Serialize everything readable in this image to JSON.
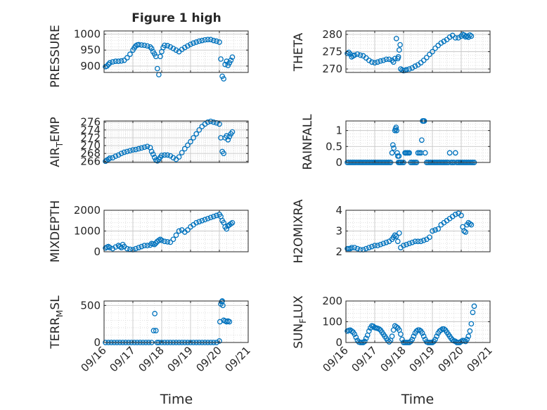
{
  "figure_title": "Figure 1 high",
  "series_color": "#0072BD",
  "x_label": "Time",
  "x_ticks": [
    "09/16",
    "09/17",
    "09/18",
    "09/19",
    "09/20",
    "09/21"
  ],
  "chart_data": [
    {
      "type": "scatter",
      "ylabel": "PRESSURE",
      "xlim": [
        0,
        5
      ],
      "ylim": [
        880,
        1010
      ],
      "yticks": [
        900,
        950,
        1000
      ],
      "ytick_labels": [
        "900",
        "950",
        "1000"
      ],
      "grid": true,
      "x": [
        0.05,
        0.1,
        0.15,
        0.2,
        0.3,
        0.4,
        0.5,
        0.6,
        0.7,
        0.8,
        0.9,
        1.0,
        1.05,
        1.1,
        1.15,
        1.2,
        1.3,
        1.4,
        1.5,
        1.6,
        1.65,
        1.7,
        1.75,
        1.8,
        1.85,
        1.9,
        1.95,
        2.0,
        2.05,
        2.1,
        2.2,
        2.3,
        2.4,
        2.5,
        2.6,
        2.7,
        2.8,
        2.9,
        3.0,
        3.1,
        3.2,
        3.3,
        3.4,
        3.5,
        3.6,
        3.7,
        3.8,
        3.9,
        4.0,
        4.05,
        4.1,
        4.15,
        4.2,
        4.25,
        4.3,
        4.35,
        4.4,
        4.45
      ],
      "y": [
        898,
        900,
        905,
        910,
        913,
        915,
        915,
        916,
        918,
        926,
        937,
        950,
        957,
        963,
        966,
        967,
        966,
        965,
        963,
        960,
        955,
        945,
        938,
        930,
        892,
        873,
        930,
        945,
        958,
        965,
        964,
        960,
        955,
        950,
        945,
        952,
        958,
        963,
        968,
        972,
        975,
        978,
        980,
        982,
        983,
        983,
        980,
        978,
        975,
        922,
        868,
        860,
        905,
        915,
        902,
        910,
        918,
        928
      ]
    },
    {
      "type": "scatter",
      "ylabel": "THETA",
      "xlim": [
        0,
        5
      ],
      "ylim": [
        269,
        281
      ],
      "yticks": [
        270,
        275,
        280
      ],
      "ytick_labels": [
        "270",
        "275",
        "280"
      ],
      "grid": true,
      "x": [
        0.05,
        0.1,
        0.15,
        0.2,
        0.25,
        0.3,
        0.4,
        0.5,
        0.6,
        0.7,
        0.8,
        0.9,
        1.0,
        1.1,
        1.2,
        1.3,
        1.4,
        1.5,
        1.6,
        1.65,
        1.7,
        1.75,
        1.8,
        1.82,
        1.85,
        1.88,
        1.9,
        1.95,
        2.0,
        2.05,
        2.1,
        2.2,
        2.3,
        2.4,
        2.5,
        2.6,
        2.7,
        2.8,
        2.9,
        3.0,
        3.1,
        3.2,
        3.3,
        3.4,
        3.5,
        3.6,
        3.7,
        3.8,
        3.9,
        4.0,
        4.05,
        4.1,
        4.15,
        4.2,
        4.25,
        4.3,
        4.35
      ],
      "y": [
        274.5,
        274.8,
        274.3,
        273.5,
        273.8,
        274.0,
        274.3,
        274.0,
        273.8,
        273.2,
        272.5,
        272.0,
        271.8,
        272.0,
        272.3,
        272.5,
        272.8,
        272.8,
        272.5,
        272.0,
        273.0,
        278.8,
        273.0,
        273.5,
        275.5,
        277.0,
        270.0,
        269.7,
        269.5,
        269.6,
        269.8,
        270.0,
        270.3,
        270.8,
        271.2,
        271.8,
        272.5,
        273.3,
        274.2,
        275.0,
        276.0,
        276.8,
        277.5,
        278.0,
        278.5,
        279.2,
        279.7,
        279.0,
        279.0,
        279.5,
        280.0,
        279.8,
        279.3,
        279.5,
        279.2,
        279.8,
        279.5
      ]
    },
    {
      "type": "scatter",
      "ylabel": "AIR_TEMP",
      "xlim": [
        0,
        5
      ],
      "ylim": [
        265.7,
        276.3
      ],
      "yticks": [
        266,
        268,
        270,
        272,
        274,
        276
      ],
      "ytick_labels": [
        "266",
        "268",
        "270",
        "272",
        "274",
        "276"
      ],
      "grid": true,
      "x": [
        0.05,
        0.1,
        0.15,
        0.2,
        0.3,
        0.4,
        0.5,
        0.6,
        0.7,
        0.8,
        0.9,
        1.0,
        1.1,
        1.2,
        1.3,
        1.4,
        1.5,
        1.6,
        1.65,
        1.7,
        1.75,
        1.8,
        1.85,
        1.9,
        1.95,
        2.0,
        2.1,
        2.2,
        2.3,
        2.4,
        2.5,
        2.6,
        2.7,
        2.8,
        2.9,
        3.0,
        3.1,
        3.2,
        3.3,
        3.4,
        3.5,
        3.6,
        3.7,
        3.8,
        3.9,
        4.0,
        4.05,
        4.1,
        4.15,
        4.2,
        4.25,
        4.3,
        4.35,
        4.4,
        4.45
      ],
      "y": [
        266.0,
        266.3,
        266.5,
        266.8,
        266.9,
        267.3,
        267.6,
        268.0,
        268.3,
        268.5,
        268.7,
        268.9,
        269.0,
        269.2,
        269.4,
        269.6,
        269.8,
        269.5,
        268.5,
        267.8,
        267.0,
        266.3,
        266.1,
        266.5,
        267.0,
        267.5,
        267.6,
        267.6,
        267.4,
        266.9,
        266.5,
        267.1,
        268.2,
        269.2,
        270.1,
        271.0,
        272.0,
        273.0,
        274.0,
        274.9,
        275.5,
        276.0,
        276.2,
        276.0,
        275.8,
        275.5,
        272.0,
        268.5,
        268.0,
        272.0,
        272.5,
        271.5,
        272.3,
        273.0,
        273.5
      ]
    },
    {
      "type": "scatter",
      "ylabel": "RAINFALL",
      "xlim": [
        0,
        5
      ],
      "ylim": [
        0,
        1.3
      ],
      "yticks": [
        0,
        0.5,
        1
      ],
      "ytick_labels": [
        "0",
        "0.5",
        "1"
      ],
      "grid": true,
      "x": [
        0.05,
        0.1,
        0.15,
        0.2,
        0.25,
        0.3,
        0.35,
        0.4,
        0.45,
        0.5,
        0.55,
        0.6,
        0.65,
        0.7,
        0.75,
        0.8,
        0.85,
        0.9,
        0.95,
        1.0,
        1.05,
        1.1,
        1.15,
        1.2,
        1.25,
        1.3,
        1.35,
        1.4,
        1.45,
        1.5,
        1.55,
        1.6,
        1.63,
        1.66,
        1.7,
        1.72,
        1.74,
        1.76,
        1.78,
        1.8,
        1.82,
        1.84,
        1.86,
        1.88,
        1.9,
        1.95,
        2.0,
        2.05,
        2.08,
        2.12,
        2.16,
        2.2,
        2.25,
        2.3,
        2.35,
        2.4,
        2.45,
        2.5,
        2.55,
        2.6,
        2.63,
        2.66,
        2.69,
        2.72,
        2.75,
        2.8,
        2.85,
        2.9,
        2.95,
        3.0,
        3.05,
        3.1,
        3.15,
        3.2,
        3.25,
        3.3,
        3.35,
        3.4,
        3.45,
        3.5,
        3.55,
        3.6,
        3.65,
        3.7,
        3.75,
        3.8,
        3.85,
        3.9,
        3.95,
        4.0,
        4.05,
        4.1,
        4.15,
        4.2,
        4.25,
        4.3,
        4.35,
        4.4,
        4.45
      ],
      "y": [
        0,
        0,
        0,
        0,
        0,
        0,
        0,
        0,
        0,
        0,
        0,
        0,
        0,
        0,
        0,
        0,
        0,
        0,
        0,
        0,
        0,
        0,
        0,
        0,
        0,
        0,
        0,
        0,
        0,
        0,
        0,
        0.3,
        0.55,
        0.45,
        1.0,
        1.05,
        1.1,
        1.0,
        0.3,
        0.2,
        0,
        0.2,
        0,
        0,
        0,
        0,
        0,
        0.3,
        0.3,
        0.3,
        0.3,
        0.3,
        0,
        0,
        0,
        0,
        0,
        0.3,
        0.3,
        0.3,
        0.7,
        1.3,
        1.3,
        1.3,
        0.3,
        0,
        0,
        0,
        0,
        0,
        0,
        0,
        0,
        0,
        0,
        0,
        0,
        0,
        0,
        0,
        0,
        0.3,
        0,
        0,
        0,
        0.3,
        0,
        0,
        0,
        0,
        0,
        0,
        0,
        0,
        0,
        0,
        0,
        0,
        0
      ]
    },
    {
      "type": "scatter",
      "ylabel": "MIXDEPTH",
      "xlim": [
        0,
        5
      ],
      "ylim": [
        0,
        2000
      ],
      "yticks": [
        0,
        1000,
        2000
      ],
      "ytick_labels": [
        "0",
        "1000",
        "2000"
      ],
      "grid": true,
      "x": [
        0.05,
        0.1,
        0.15,
        0.2,
        0.3,
        0.4,
        0.5,
        0.55,
        0.6,
        0.65,
        0.7,
        0.8,
        0.9,
        1.0,
        1.1,
        1.2,
        1.3,
        1.4,
        1.5,
        1.6,
        1.65,
        1.7,
        1.75,
        1.8,
        1.85,
        1.9,
        1.95,
        2.0,
        2.1,
        2.2,
        2.3,
        2.4,
        2.5,
        2.6,
        2.7,
        2.8,
        2.9,
        3.0,
        3.1,
        3.2,
        3.3,
        3.4,
        3.5,
        3.6,
        3.7,
        3.8,
        3.9,
        4.0,
        4.05,
        4.1,
        4.15,
        4.2,
        4.25,
        4.3,
        4.35,
        4.4,
        4.45
      ],
      "y": [
        180,
        220,
        250,
        200,
        150,
        230,
        300,
        250,
        200,
        350,
        250,
        150,
        120,
        100,
        150,
        200,
        250,
        300,
        300,
        320,
        400,
        380,
        350,
        420,
        500,
        550,
        600,
        550,
        500,
        480,
        460,
        600,
        800,
        1000,
        1050,
        950,
        1050,
        1200,
        1300,
        1400,
        1450,
        1500,
        1550,
        1600,
        1650,
        1700,
        1750,
        1800,
        1700,
        1500,
        1400,
        1200,
        1100,
        1250,
        1300,
        1350,
        1400
      ]
    },
    {
      "type": "scatter",
      "ylabel": "H2OMIXRA",
      "xlim": [
        0,
        5
      ],
      "ylim": [
        2,
        4
      ],
      "yticks": [
        2,
        3,
        4
      ],
      "ytick_labels": [
        "2",
        "3",
        "4"
      ],
      "grid": true,
      "x": [
        0.05,
        0.1,
        0.15,
        0.2,
        0.3,
        0.4,
        0.5,
        0.6,
        0.7,
        0.8,
        0.9,
        1.0,
        1.1,
        1.2,
        1.3,
        1.4,
        1.5,
        1.6,
        1.65,
        1.7,
        1.75,
        1.8,
        1.85,
        1.9,
        2.0,
        2.1,
        2.2,
        2.3,
        2.4,
        2.5,
        2.6,
        2.7,
        2.8,
        2.9,
        3.0,
        3.1,
        3.2,
        3.3,
        3.4,
        3.5,
        3.6,
        3.7,
        3.8,
        3.9,
        4.0,
        4.05,
        4.1,
        4.15,
        4.2,
        4.25,
        4.3,
        4.35
      ],
      "y": [
        2.15,
        2.15,
        2.15,
        2.2,
        2.2,
        2.15,
        2.1,
        2.1,
        2.15,
        2.2,
        2.25,
        2.3,
        2.3,
        2.35,
        2.4,
        2.45,
        2.5,
        2.6,
        2.7,
        2.8,
        2.75,
        2.5,
        2.9,
        2.2,
        2.3,
        2.35,
        2.4,
        2.45,
        2.5,
        2.5,
        2.5,
        2.55,
        2.6,
        2.7,
        3.0,
        3.05,
        3.1,
        3.3,
        3.4,
        3.5,
        3.6,
        3.7,
        3.8,
        3.85,
        3.75,
        3.2,
        3.0,
        2.95,
        3.3,
        3.4,
        3.35,
        3.3
      ]
    },
    {
      "type": "scatter",
      "ylabel": "TERR_MSL",
      "xlim": [
        0,
        5
      ],
      "ylim": [
        0,
        560
      ],
      "yticks": [
        0,
        500
      ],
      "ytick_labels": [
        "0",
        "500"
      ],
      "grid": true,
      "x": [
        0.05,
        0.15,
        0.25,
        0.35,
        0.45,
        0.55,
        0.65,
        0.75,
        0.85,
        0.95,
        1.05,
        1.15,
        1.25,
        1.35,
        1.45,
        1.55,
        1.65,
        1.72,
        1.76,
        1.8,
        1.84,
        1.9,
        2.0,
        2.1,
        2.2,
        2.3,
        2.4,
        2.5,
        2.6,
        2.7,
        2.8,
        2.9,
        3.0,
        3.1,
        3.2,
        3.3,
        3.4,
        3.5,
        3.6,
        3.7,
        3.8,
        3.9,
        4.0,
        4.02,
        4.05,
        4.08,
        4.1,
        4.12,
        4.15,
        4.2,
        4.25,
        4.3,
        4.35
      ],
      "y": [
        0,
        0,
        0,
        0,
        0,
        0,
        0,
        0,
        0,
        0,
        0,
        0,
        0,
        0,
        0,
        0,
        0,
        160,
        390,
        160,
        0,
        0,
        0,
        0,
        0,
        0,
        0,
        0,
        0,
        0,
        0,
        0,
        0,
        0,
        0,
        0,
        0,
        0,
        0,
        0,
        0,
        0,
        20,
        280,
        520,
        550,
        560,
        500,
        300,
        290,
        280,
        290,
        280
      ]
    },
    {
      "type": "scatter",
      "ylabel": "SUN_FLUX",
      "xlim": [
        0,
        5
      ],
      "ylim": [
        0,
        200
      ],
      "yticks": [
        0,
        100,
        200
      ],
      "ytick_labels": [
        "0",
        "100",
        "200"
      ],
      "grid": true,
      "x": [
        0.05,
        0.1,
        0.15,
        0.2,
        0.25,
        0.3,
        0.35,
        0.4,
        0.45,
        0.5,
        0.55,
        0.6,
        0.65,
        0.7,
        0.75,
        0.8,
        0.85,
        0.9,
        0.95,
        1.0,
        1.05,
        1.1,
        1.15,
        1.2,
        1.25,
        1.3,
        1.35,
        1.4,
        1.45,
        1.5,
        1.55,
        1.6,
        1.65,
        1.7,
        1.75,
        1.8,
        1.85,
        1.9,
        1.95,
        2.0,
        2.05,
        2.1,
        2.15,
        2.2,
        2.25,
        2.3,
        2.35,
        2.4,
        2.45,
        2.5,
        2.55,
        2.6,
        2.65,
        2.7,
        2.75,
        2.8,
        2.85,
        2.9,
        2.95,
        3.0,
        3.05,
        3.1,
        3.15,
        3.2,
        3.25,
        3.3,
        3.35,
        3.4,
        3.45,
        3.5,
        3.55,
        3.6,
        3.65,
        3.7,
        3.75,
        3.8,
        3.85,
        3.9,
        3.95,
        4.0,
        4.05,
        4.1,
        4.15,
        4.2,
        4.25,
        4.3,
        4.35,
        4.4,
        4.45
      ],
      "y": [
        55,
        58,
        60,
        55,
        50,
        40,
        25,
        10,
        2,
        0,
        0,
        0,
        5,
        20,
        35,
        55,
        70,
        80,
        78,
        72,
        70,
        68,
        65,
        60,
        50,
        40,
        30,
        20,
        10,
        3,
        10,
        30,
        60,
        80,
        75,
        70,
        60,
        40,
        15,
        0,
        0,
        0,
        0,
        0,
        5,
        15,
        30,
        45,
        55,
        60,
        60,
        55,
        45,
        30,
        15,
        3,
        0,
        0,
        0,
        0,
        5,
        15,
        30,
        45,
        55,
        60,
        65,
        65,
        60,
        50,
        40,
        30,
        20,
        12,
        8,
        5,
        0,
        0,
        0,
        5,
        10,
        8,
        5,
        15,
        30,
        55,
        90,
        145,
        175
      ]
    }
  ]
}
